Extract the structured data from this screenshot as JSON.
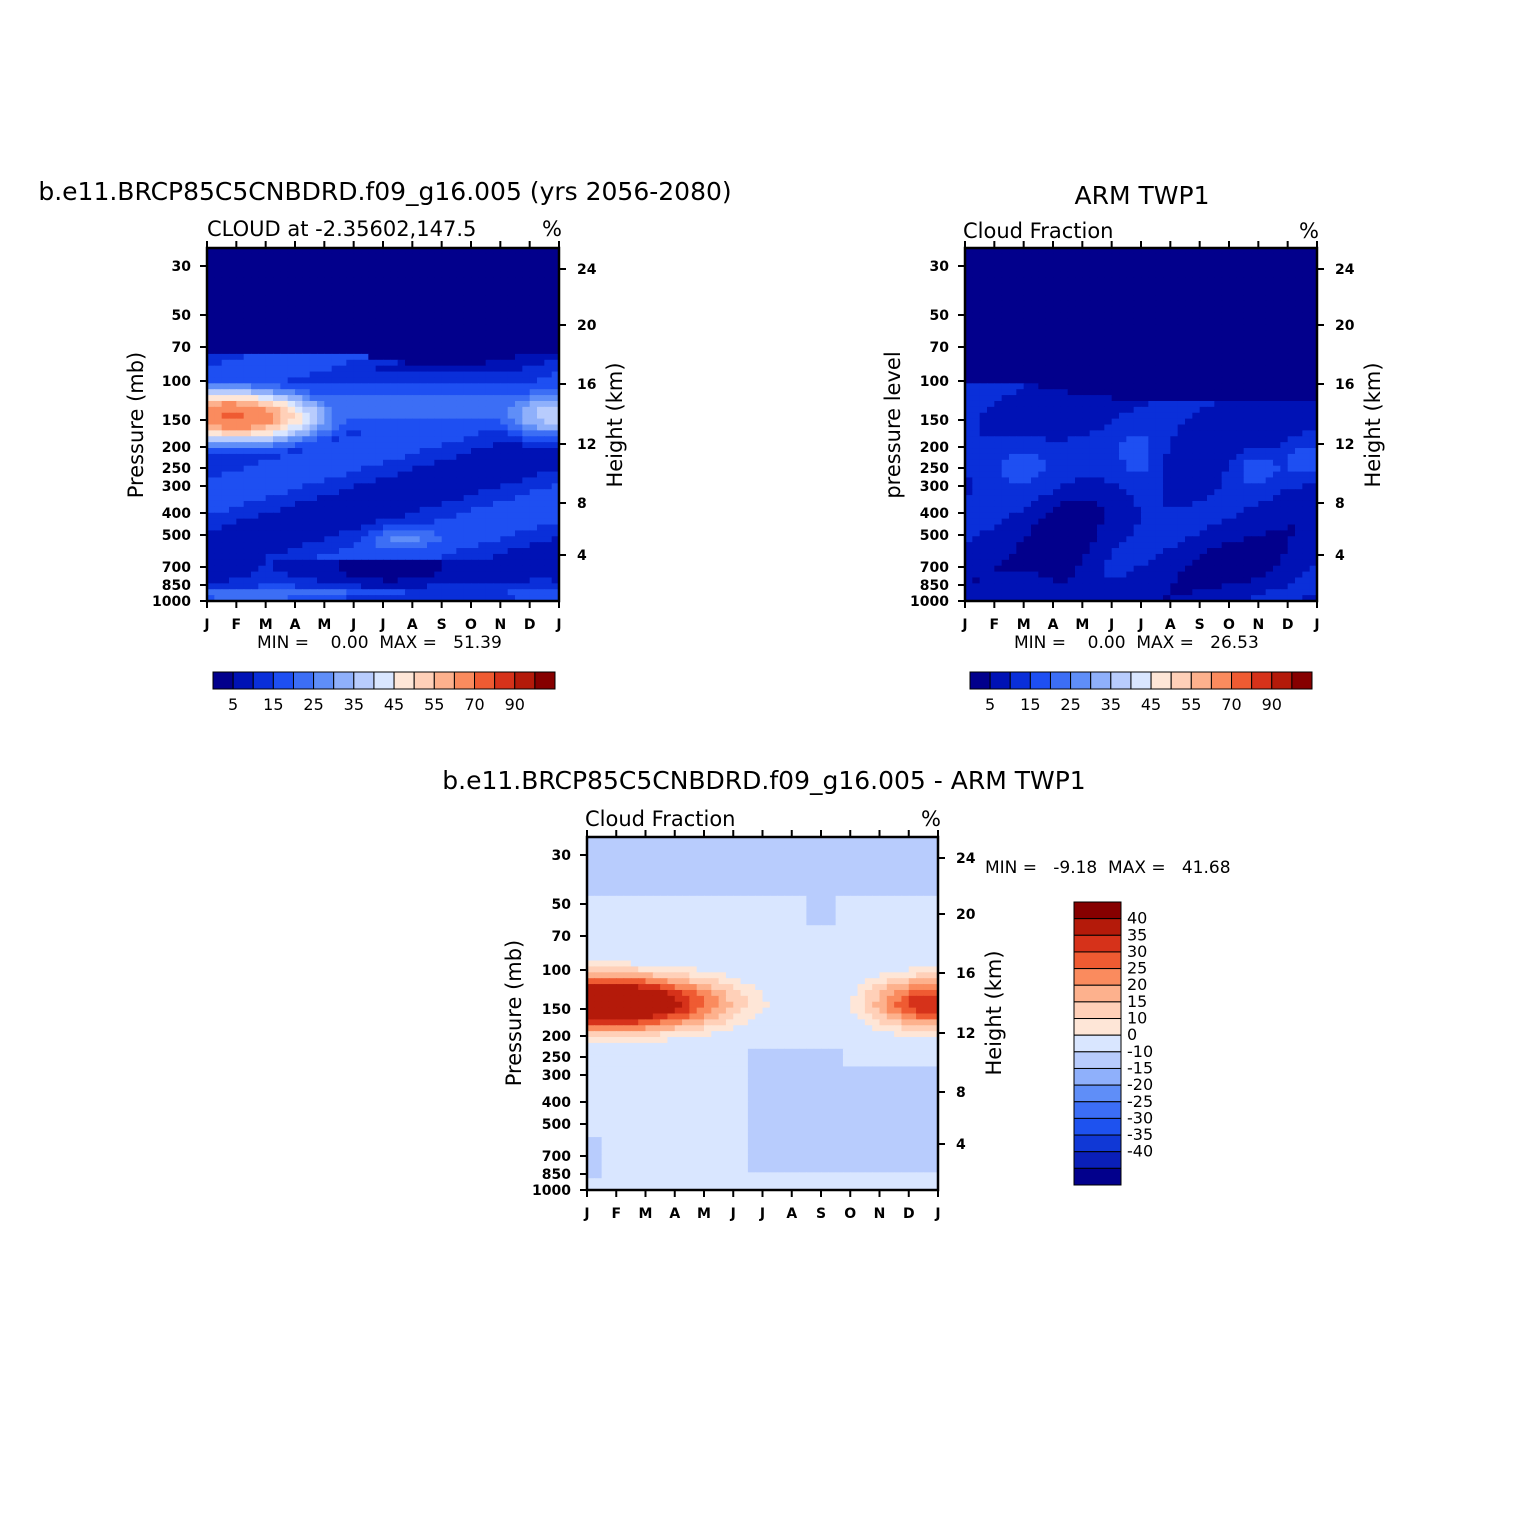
{
  "colors": {
    "model_levels": [
      "#02008c",
      "#0012b5",
      "#0a2fd9",
      "#1e4ff2",
      "#3c6ef5",
      "#5f8ef8",
      "#8fb0fb",
      "#b8ccfd",
      "#d9e6ff",
      "#fee6d7",
      "#ffd0b8",
      "#fdb18d",
      "#fa8b5e",
      "#ef5b32",
      "#d6321a",
      "#b41a0a",
      "#860000"
    ],
    "diff_levels": [
      "#02008c",
      "#0a1fb8",
      "#1038d6",
      "#1e52ef",
      "#3c6ef5",
      "#5f8ef8",
      "#8fb0fb",
      "#b8ccfd",
      "#d9e6ff",
      "#fee6d7",
      "#ffd0b8",
      "#fdb18d",
      "#fa8b5e",
      "#ef5b32",
      "#d6321a",
      "#b41a0a",
      "#860000"
    ]
  },
  "chart_data": [
    {
      "id": "model",
      "type": "heatmap",
      "title": "b.e11.BRCP85C5CNBDRD.f09_g16.005 (yrs 2056-2080)",
      "subtitle_left": "CLOUD at -2.35602,147.5",
      "subtitle_right": "%",
      "ylabel_left": "Pressure (mb)",
      "ylabel_right": "Height (km)",
      "x_ticks": [
        "J",
        "F",
        "M",
        "A",
        "M",
        "J",
        "J",
        "A",
        "S",
        "O",
        "N",
        "D",
        "J"
      ],
      "y_ticks": [
        "30",
        "50",
        "70",
        "100",
        "150",
        "200",
        "250",
        "300",
        "400",
        "500",
        "700",
        "850",
        "1000"
      ],
      "y2_ticks": [
        "24",
        "20",
        "16",
        "12",
        "8",
        "4"
      ],
      "minmax": "MIN =    0.00  MAX =   51.39",
      "colorbar_labels": [
        "5",
        "15",
        "25",
        "35",
        "45",
        "55",
        "70",
        "90"
      ],
      "colorbar_levels": [
        5,
        10,
        15,
        20,
        25,
        30,
        35,
        40,
        45,
        50,
        55,
        60,
        70,
        80,
        90,
        95
      ]
    },
    {
      "id": "obs",
      "type": "heatmap",
      "title": "ARM TWP1",
      "subtitle_left": "Cloud Fraction",
      "subtitle_right": "%",
      "ylabel_left": "pressure level",
      "ylabel_right": "Height (km)",
      "x_ticks": [
        "J",
        "F",
        "M",
        "A",
        "M",
        "J",
        "J",
        "A",
        "S",
        "O",
        "N",
        "D",
        "J"
      ],
      "y_ticks": [
        "30",
        "50",
        "70",
        "100",
        "150",
        "200",
        "250",
        "300",
        "400",
        "500",
        "700",
        "850",
        "1000"
      ],
      "y2_ticks": [
        "24",
        "20",
        "16",
        "12",
        "8",
        "4"
      ],
      "minmax": "MIN =    0.00  MAX =   26.53",
      "colorbar_labels": [
        "5",
        "15",
        "25",
        "35",
        "45",
        "55",
        "70",
        "90"
      ],
      "colorbar_levels": [
        5,
        10,
        15,
        20,
        25,
        30,
        35,
        40,
        45,
        50,
        55,
        60,
        70,
        80,
        90,
        95
      ]
    },
    {
      "id": "diff",
      "type": "heatmap",
      "title": "b.e11.BRCP85C5CNBDRD.f09_g16.005 - ARM TWP1",
      "subtitle_left": "Cloud Fraction",
      "subtitle_right": "%",
      "ylabel_left": "Pressure (mb)",
      "ylabel_right": "Height (km)",
      "x_ticks": [
        "J",
        "F",
        "M",
        "A",
        "M",
        "J",
        "J",
        "A",
        "S",
        "O",
        "N",
        "D",
        "J"
      ],
      "y_ticks": [
        "30",
        "50",
        "70",
        "100",
        "150",
        "200",
        "250",
        "300",
        "400",
        "500",
        "700",
        "850",
        "1000"
      ],
      "y2_ticks": [
        "24",
        "20",
        "16",
        "12",
        "8",
        "4"
      ],
      "minmax": "MIN =   -9.18  MAX =   41.68",
      "colorbar_labels": [
        "40",
        "35",
        "30",
        "25",
        "20",
        "15",
        "10",
        "0",
        "-10",
        "-15",
        "-20",
        "-25",
        "-30",
        "-35",
        "-40"
      ],
      "colorbar_levels": [
        -40,
        -35,
        -30,
        -25,
        -20,
        -15,
        -10,
        0,
        10,
        15,
        20,
        25,
        30,
        35,
        40
      ]
    }
  ]
}
